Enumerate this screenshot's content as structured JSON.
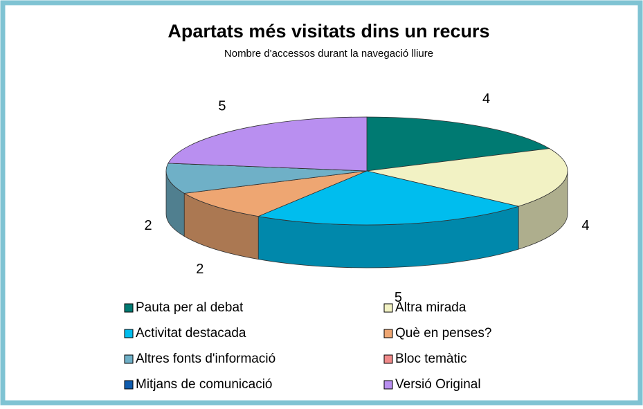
{
  "chart_data": {
    "type": "pie3d",
    "title": "Apartats més visitats dins un recurs",
    "subtitle": "Nombre d'accessos durant la navegació lliure",
    "categories": [
      "Pauta per al debat",
      "Altra mirada",
      "Activitat destacada",
      "Què en penses?",
      "Altres fonts d'informació",
      "Bloc temàtic",
      "Mitjans de comunicació",
      "Versió Original"
    ],
    "values": [
      4,
      4,
      5,
      2,
      2,
      0,
      0,
      5
    ],
    "colors": [
      "#007a72",
      "#f2f2c4",
      "#00bdee",
      "#eea672",
      "#6fb0c7",
      "#f08a8a",
      "#0f5cae",
      "#b98ff0"
    ],
    "legend": "bottom"
  }
}
